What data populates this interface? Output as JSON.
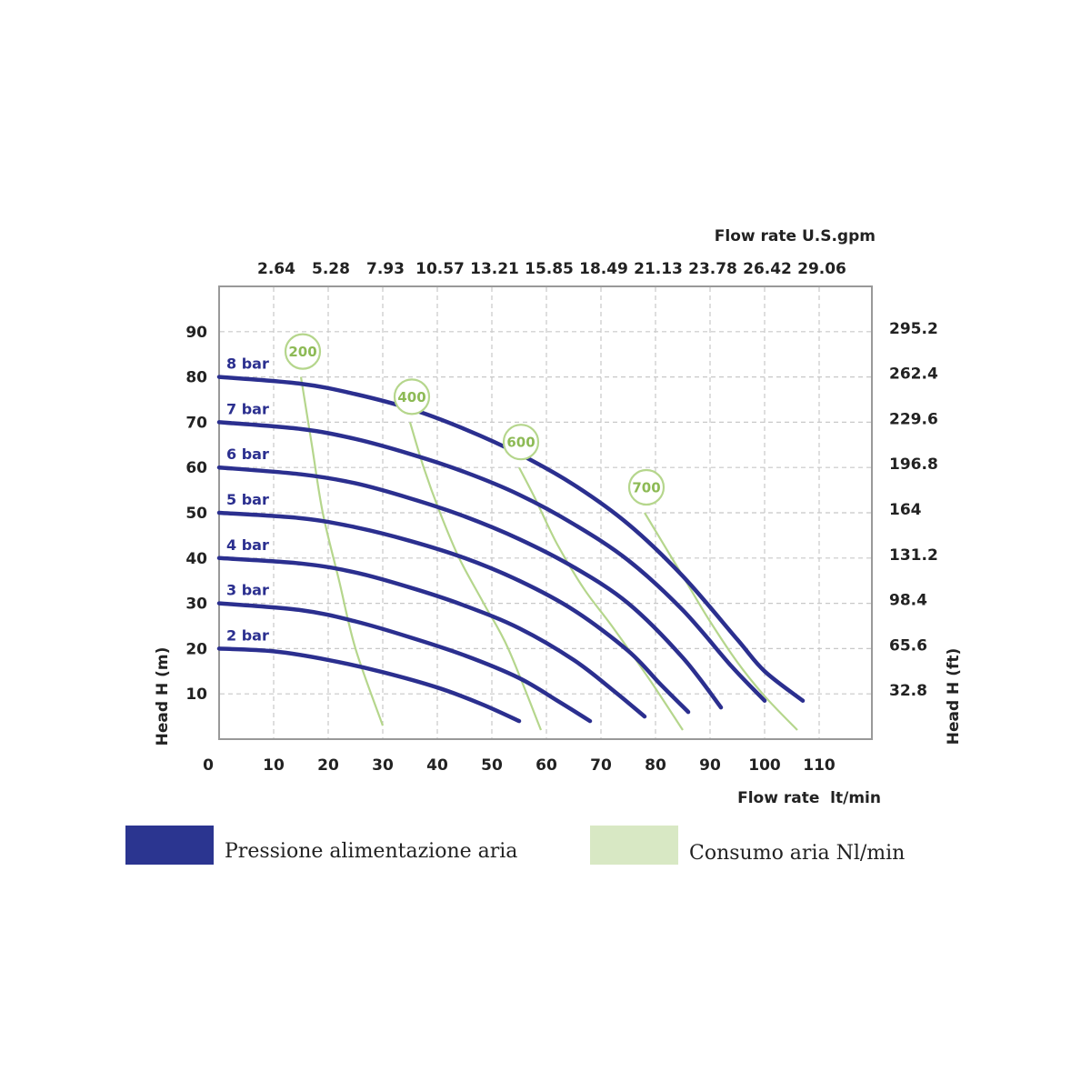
{
  "chart_data": {
    "type": "line",
    "top_axis": {
      "title": "Flow rate U.S.gpm",
      "tick_labels": [
        "2.64",
        "5.28",
        "7.93",
        "10.57",
        "13.21",
        "15.85",
        "18.49",
        "21.13",
        "23.78",
        "26.42",
        "29.06"
      ],
      "tick_values_lt_min": [
        10,
        20,
        30,
        40,
        50,
        60,
        70,
        80,
        90,
        100,
        110
      ]
    },
    "x_axis": {
      "title": "Flow rate  lt/min",
      "ticks": [
        0,
        10,
        20,
        30,
        40,
        50,
        60,
        70,
        80,
        90,
        100,
        110
      ],
      "range": [
        0,
        120
      ]
    },
    "y_left": {
      "title": "Head H (m)",
      "ticks": [
        10,
        20,
        30,
        40,
        50,
        60,
        70,
        80,
        90
      ],
      "range": [
        0,
        100
      ]
    },
    "y_right": {
      "title": "Head H (ft)",
      "tick_labels": [
        "32.8",
        "65.6",
        "98.4",
        "131.2",
        "164",
        "196.8",
        "229.6",
        "262.4",
        "295.2"
      ],
      "tick_values_m": [
        10,
        20,
        30,
        40,
        50,
        60,
        70,
        80,
        90
      ]
    },
    "grid": true,
    "pressure_series": [
      {
        "name": "2 bar",
        "points": [
          [
            0,
            20
          ],
          [
            10,
            19.4
          ],
          [
            20,
            17.5
          ],
          [
            30,
            14.8
          ],
          [
            40,
            11.4
          ],
          [
            48,
            7.8
          ],
          [
            55,
            4
          ]
        ]
      },
      {
        "name": "3 bar",
        "points": [
          [
            0,
            30
          ],
          [
            15,
            28.5
          ],
          [
            25,
            26
          ],
          [
            35,
            22.5
          ],
          [
            45,
            18.5
          ],
          [
            55,
            13.5
          ],
          [
            62,
            8.5
          ],
          [
            68,
            4
          ]
        ]
      },
      {
        "name": "4 bar",
        "points": [
          [
            0,
            40
          ],
          [
            15,
            38.8
          ],
          [
            25,
            36.8
          ],
          [
            35,
            33.5
          ],
          [
            45,
            29.5
          ],
          [
            55,
            24.5
          ],
          [
            65,
            17.5
          ],
          [
            72,
            11
          ],
          [
            78,
            5
          ]
        ]
      },
      {
        "name": "5 bar",
        "points": [
          [
            0,
            50
          ],
          [
            15,
            48.8
          ],
          [
            25,
            46.8
          ],
          [
            35,
            43.8
          ],
          [
            45,
            40
          ],
          [
            55,
            35
          ],
          [
            65,
            28.5
          ],
          [
            75,
            19.5
          ],
          [
            81,
            12
          ],
          [
            86,
            6
          ]
        ]
      },
      {
        "name": "6 bar",
        "points": [
          [
            0,
            60
          ],
          [
            15,
            58.5
          ],
          [
            25,
            56.5
          ],
          [
            35,
            53.2
          ],
          [
            45,
            49.2
          ],
          [
            55,
            44.2
          ],
          [
            65,
            38
          ],
          [
            75,
            30
          ],
          [
            85,
            18
          ],
          [
            92,
            7
          ]
        ]
      },
      {
        "name": "7 bar",
        "points": [
          [
            0,
            70
          ],
          [
            15,
            68.5
          ],
          [
            25,
            66.3
          ],
          [
            35,
            63
          ],
          [
            45,
            59
          ],
          [
            55,
            54
          ],
          [
            65,
            47.5
          ],
          [
            75,
            39.5
          ],
          [
            85,
            28.5
          ],
          [
            94,
            16
          ],
          [
            100,
            8.5
          ]
        ]
      },
      {
        "name": "8 bar",
        "points": [
          [
            0,
            80
          ],
          [
            15,
            78.5
          ],
          [
            25,
            76.2
          ],
          [
            35,
            73
          ],
          [
            45,
            68.5
          ],
          [
            55,
            63
          ],
          [
            65,
            56.2
          ],
          [
            75,
            47.5
          ],
          [
            85,
            36
          ],
          [
            95,
            22
          ],
          [
            100,
            15
          ],
          [
            107,
            8.5
          ]
        ]
      }
    ],
    "air_consumption_series": [
      {
        "name": "200",
        "points": [
          [
            15,
            80
          ],
          [
            17,
            65
          ],
          [
            19,
            50
          ],
          [
            22,
            35
          ],
          [
            25,
            20
          ],
          [
            30,
            3
          ]
        ]
      },
      {
        "name": "400",
        "points": [
          [
            35,
            70
          ],
          [
            37.5,
            60
          ],
          [
            40.5,
            50
          ],
          [
            44,
            40
          ],
          [
            48.5,
            30
          ],
          [
            53,
            20
          ],
          [
            59,
            2
          ]
        ]
      },
      {
        "name": "600",
        "points": [
          [
            55,
            60
          ],
          [
            58,
            53
          ],
          [
            62,
            43
          ],
          [
            67,
            33
          ],
          [
            72,
            25
          ],
          [
            79,
            13
          ],
          [
            85,
            2
          ]
        ]
      },
      {
        "name": "700",
        "points": [
          [
            78,
            50
          ],
          [
            82,
            42
          ],
          [
            86,
            34
          ],
          [
            90,
            26
          ],
          [
            95,
            17
          ],
          [
            100,
            9.5
          ],
          [
            106,
            2
          ]
        ]
      }
    ],
    "series_colors": {
      "pressure": "#2b2f8f",
      "air_consumption": "#b5d68c",
      "air_text": "#8dba55"
    }
  },
  "legend": [
    {
      "label": "Pressione alimentazione aria",
      "color": "#2b3590"
    },
    {
      "label": "Consumo aria Nl/min",
      "color": "#d8e8c4"
    }
  ]
}
